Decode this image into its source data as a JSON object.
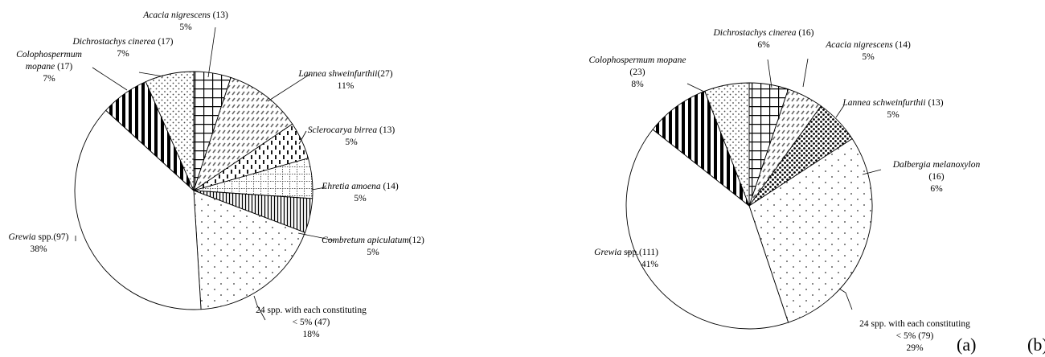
{
  "chart_data": [
    {
      "type": "pie",
      "panel_label": "(a)",
      "slices": [
        {
          "species": "Acacia nigrescens",
          "rest": " (13)",
          "count": 13,
          "pct_label": "5%",
          "pattern": "grid"
        },
        {
          "species": "Lannea   shweinfurthii",
          "rest": "(27)",
          "count": 27,
          "pct_label": "11%",
          "pattern": "hatch"
        },
        {
          "species": "Sclerocarya birrea",
          "rest": " (13)",
          "count": 13,
          "pct_label": "5%",
          "pattern": "dashes"
        },
        {
          "species": "Ehretia amoena",
          "rest": " (14)",
          "count": 14,
          "pct_label": "5%",
          "pattern": "dotgrid"
        },
        {
          "species": "Combretum apiculatum",
          "rest": "(12)",
          "count": 12,
          "pct_label": "5%",
          "pattern": "vlines"
        },
        {
          "species": "",
          "rest": "24 spp. with each constituting",
          "rest2": "< 5% (47)",
          "count": 47,
          "pct_label": "18%",
          "pattern": "sparsedots"
        },
        {
          "species": "Grewia",
          "rest": " spp.(97)",
          "count": 97,
          "pct_label": "38%",
          "pattern": "white"
        },
        {
          "species": "Colophospermum",
          "species2": "mopane",
          "rest": " (17)",
          "count": 17,
          "pct_label": "7%",
          "pattern": "thickv"
        },
        {
          "species": "Dichrostachys cinerea",
          "rest": " (17)",
          "count": 17,
          "pct_label": "7%",
          "pattern": "dots"
        }
      ]
    },
    {
      "type": "pie",
      "panel_label": "(b)",
      "slices": [
        {
          "species": "Acacia nigrescens",
          "rest": " (14)",
          "count": 14,
          "pct_label": "5%",
          "pattern": "grid"
        },
        {
          "species": "Lannea schweinfurthii",
          "rest": " (13)",
          "count": 13,
          "pct_label": "5%",
          "pattern": "hatch"
        },
        {
          "species": "Dalbergia melanoxylon",
          "rest": "(16)",
          "count": 16,
          "pct_label": "6%",
          "pattern": "heavydots"
        },
        {
          "species": "",
          "rest": "24 spp. with each constituting",
          "rest2": "< 5% (79)",
          "count": 79,
          "pct_label": "29%",
          "pattern": "sparsedots"
        },
        {
          "species": "Grewia",
          "rest": " spp.(111)",
          "count": 111,
          "pct_label": "41%",
          "pattern": "white"
        },
        {
          "species": "Colophospermum mopane",
          "rest": "(23)",
          "count": 23,
          "pct_label": "8%",
          "pattern": "thickv"
        },
        {
          "species": "Dichrostachys cinerea",
          "rest": " (16)",
          "count": 16,
          "pct_label": "6%",
          "pattern": "dots"
        }
      ]
    }
  ]
}
